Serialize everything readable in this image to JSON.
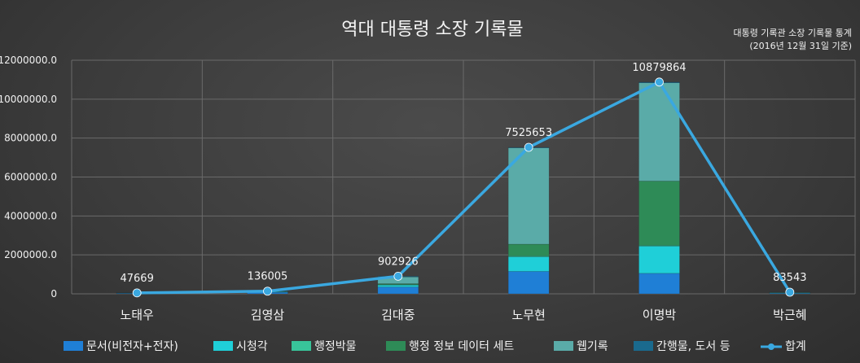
{
  "chart_data": {
    "type": "bar",
    "title": "역대 대통령 소장 기록물",
    "subtitle_line1": "대통령 기록관 소장 기록물 통계",
    "subtitle_line2": "(2016년 12월 31일 기준)",
    "categories": [
      "노태우",
      "김영삼",
      "김대중",
      "노무현",
      "이명박",
      "박근혜"
    ],
    "ylim": [
      0,
      12000000
    ],
    "yticks": [
      "0",
      "2000000.0",
      "4000000.0",
      "6000000.0",
      "8000000.0",
      "10000000.0",
      "12000000.0"
    ],
    "ytick_values": [
      0,
      2000000,
      4000000,
      6000000,
      8000000,
      10000000,
      12000000
    ],
    "stacked": true,
    "grid": true,
    "legend_position": "bottom",
    "series": [
      {
        "name": "문서(비전자+전자)",
        "color": "#1f7fd6",
        "values": [
          30000,
          80000,
          350000,
          1150000,
          1050000,
          30000
        ]
      },
      {
        "name": "시청각",
        "color": "#1fcfd8",
        "values": [
          10000,
          30000,
          100000,
          750000,
          1400000,
          20000
        ]
      },
      {
        "name": "행정박물",
        "color": "#38c49a",
        "values": [
          2000,
          5000,
          20000,
          50000,
          40000,
          3000
        ]
      },
      {
        "name": "행정 정보 데이터 세트",
        "color": "#2e8b57",
        "values": [
          1000,
          5000,
          50000,
          600000,
          3300000,
          10000
        ]
      },
      {
        "name": "웹기록",
        "color": "#5aaba8",
        "values": [
          3000,
          10000,
          350000,
          4950000,
          5050000,
          15000
        ]
      },
      {
        "name": "간행물, 도서 등",
        "color": "#1a6a8e",
        "values": [
          1669,
          6005,
          32926,
          25653,
          39864,
          5543
        ]
      }
    ],
    "line_series": {
      "name": "합계",
      "color": "#3aa8e0",
      "values": [
        47669,
        136005,
        902926,
        7525653,
        10879864,
        83543
      ],
      "labels": [
        "47669",
        "136005",
        "902926",
        "7525653",
        "10879864",
        "83543"
      ]
    }
  }
}
